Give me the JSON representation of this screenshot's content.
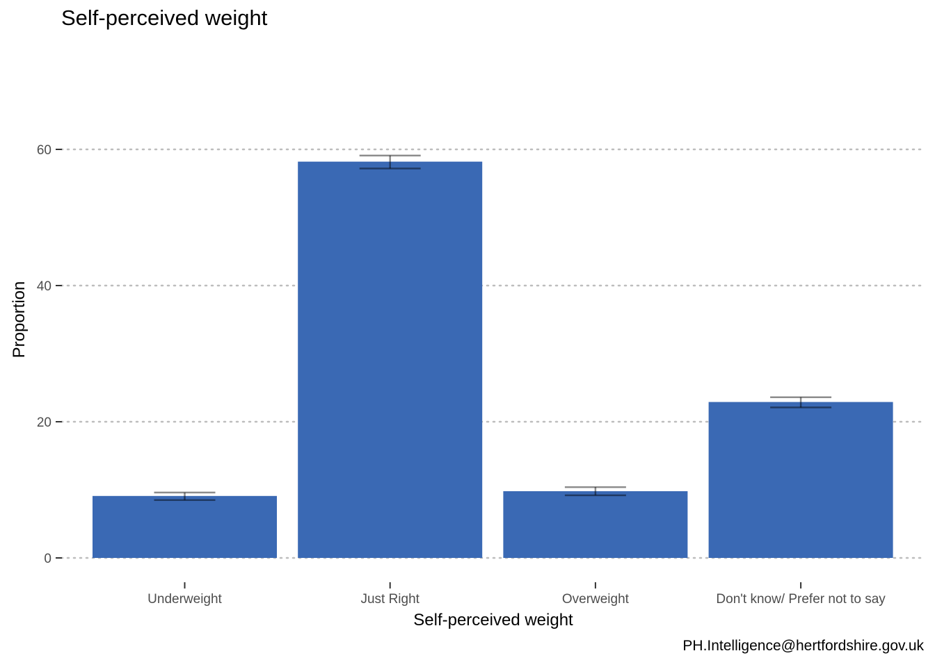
{
  "chart_data": {
    "type": "bar",
    "title": "Self-perceived weight",
    "xlabel": "Self-perceived weight",
    "ylabel": "Proportion",
    "categories": [
      "Underweight",
      "Just Right",
      "Overweight",
      "Don't know/ Prefer not to say"
    ],
    "values": [
      9.1,
      58.2,
      9.8,
      22.9
    ],
    "error_low": [
      8.5,
      57.2,
      9.2,
      22.1
    ],
    "error_high": [
      9.6,
      59.1,
      10.4,
      23.6
    ],
    "yticks": [
      0,
      20,
      40,
      60
    ],
    "ylim": [
      0,
      60
    ],
    "grid": "horizontal dotted",
    "legend": "none",
    "caption": "PH.Intelligence@hertfordshire.gov.uk",
    "colors": {
      "bar": "#3a69b4",
      "error_bar": "#000000",
      "grid": "#bdbdbd",
      "tick_text": "#4d4d4d"
    }
  }
}
